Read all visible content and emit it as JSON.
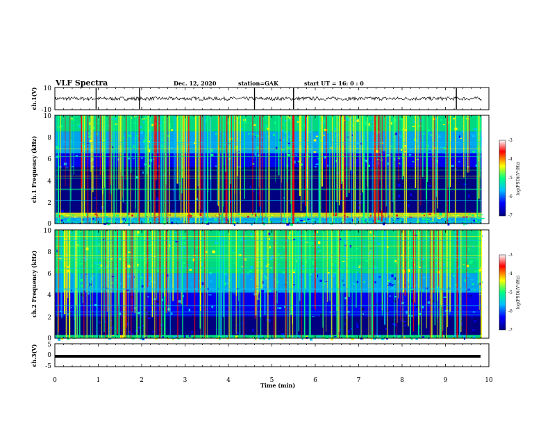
{
  "header": {
    "title": "VLF Spectra",
    "date": "Dec. 12, 2020",
    "station": "station=GAK",
    "start": "start UT =  16: 0  : 0"
  },
  "colorbar": {
    "label": "log(PSD)(V²/Hz)",
    "ticks": [
      "-3",
      "-4",
      "-5",
      "-6",
      "-7"
    ],
    "colors": [
      "#000080",
      "#0000ff",
      "#00c0ff",
      "#00ff80",
      "#ffff00",
      "#ff0000",
      "#ffffff"
    ]
  },
  "chart_data": [
    {
      "type": "line",
      "ylabel": "ch.1(V)",
      "ylim": [
        -10,
        10
      ],
      "yticks": [
        "10",
        "-10"
      ],
      "xlim": [
        0,
        10
      ],
      "baseline_v": 0,
      "spikes_min": [
        0.95,
        1.95,
        4.6,
        5.5,
        9.25
      ]
    },
    {
      "type": "heatmap",
      "ylabel": "ch.1 Frequency (kHz)",
      "ylim": [
        0,
        10
      ],
      "yticks": [
        "10",
        "8",
        "6",
        "4",
        "2",
        "0"
      ],
      "xlim": [
        0,
        9.83
      ],
      "bands_khz": [
        {
          "lo": 8.5,
          "hi": 10,
          "level": 0.55
        },
        {
          "lo": 6.5,
          "hi": 8.5,
          "level": 0.48
        },
        {
          "lo": 5.2,
          "hi": 6.5,
          "level": 0.32
        },
        {
          "lo": 1.0,
          "hi": 5.2,
          "level": 0.1
        },
        {
          "lo": 0.55,
          "hi": 1.0,
          "level": 0.75
        },
        {
          "lo": 0.0,
          "hi": 0.55,
          "level": 0.45
        }
      ]
    },
    {
      "type": "heatmap",
      "ylabel": "ch.2 Frequency (kHz)",
      "ylim": [
        0,
        10
      ],
      "yticks": [
        "10",
        "8",
        "6",
        "4",
        "2",
        "0"
      ],
      "xlim": [
        0,
        9.83
      ],
      "bands_khz": [
        {
          "lo": 7.5,
          "hi": 10,
          "level": 0.5
        },
        {
          "lo": 6.0,
          "hi": 7.5,
          "level": 0.55
        },
        {
          "lo": 4.2,
          "hi": 6.0,
          "level": 0.4
        },
        {
          "lo": 2.0,
          "hi": 4.2,
          "level": 0.22
        },
        {
          "lo": 0.3,
          "hi": 2.0,
          "level": 0.08
        },
        {
          "lo": 0.0,
          "hi": 0.3,
          "level": 0.5
        }
      ]
    },
    {
      "type": "line",
      "ylabel": "ch.3(V)",
      "ylim": [
        -5,
        5
      ],
      "yticks": [
        "5",
        "0",
        "-5"
      ],
      "xlim": [
        0,
        10
      ],
      "baseline_v": -0.5
    }
  ],
  "xaxis": {
    "label": "Time (min)",
    "ticks": [
      "0",
      "1",
      "2",
      "3",
      "4",
      "5",
      "6",
      "7",
      "8",
      "9",
      "10"
    ],
    "range": [
      0,
      10
    ]
  }
}
